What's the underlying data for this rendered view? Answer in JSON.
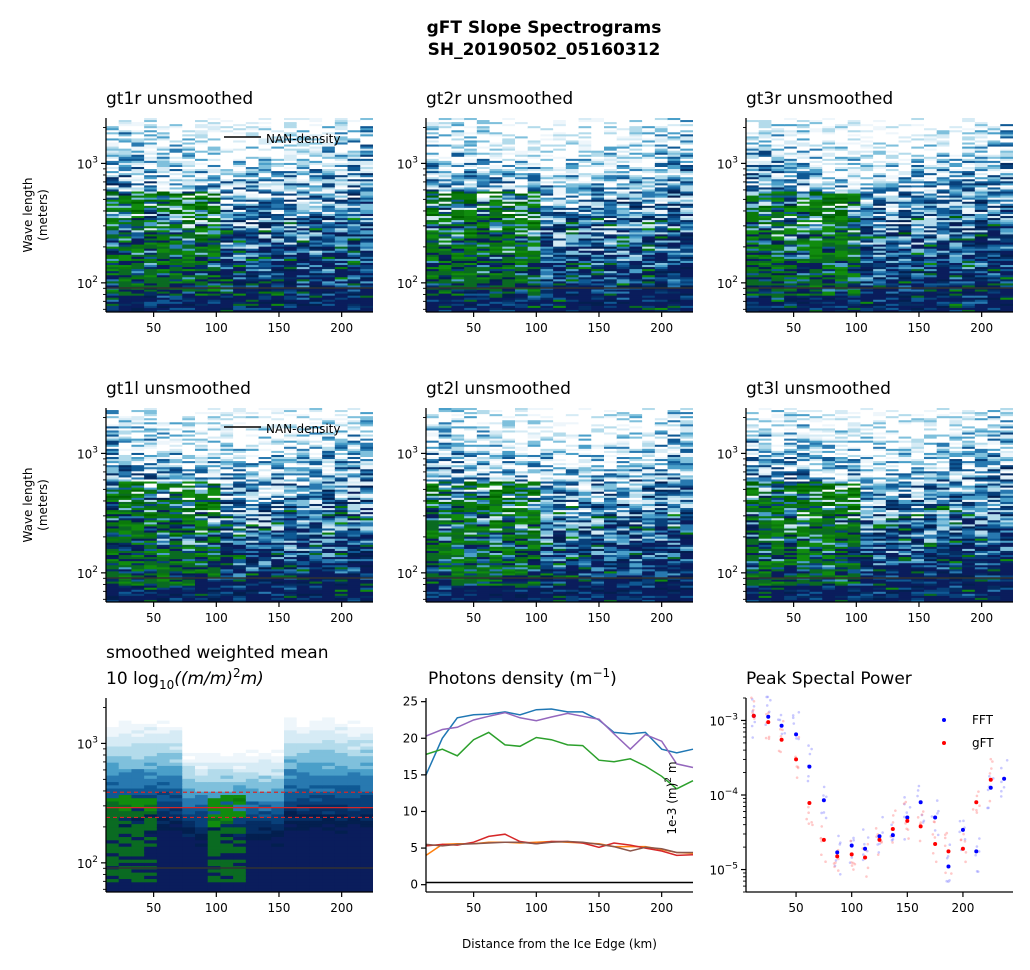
{
  "suptitle": {
    "line1": "gFT Slope Spectrograms",
    "line2": "SH_20190502_05160312"
  },
  "chart_data": [
    {
      "type": "heatmap",
      "id": "gt1r",
      "title": "gt1r unsmoothed",
      "ylabel_line1": "Wave length",
      "ylabel_line2": "(meters)",
      "legend_label": "NAN-density",
      "x_ticks": [
        "50",
        "100",
        "150",
        "200"
      ],
      "y_ticks": [
        "10",
        "10"
      ],
      "y_tick_exps": [
        "3",
        "2"
      ],
      "xlim": [
        12,
        225
      ],
      "ylim": [
        57,
        2400
      ],
      "yscale": "log",
      "seed": 11,
      "green_left": true
    },
    {
      "type": "heatmap",
      "id": "gt2r",
      "title": "gt2r unsmoothed",
      "x_ticks": [
        "50",
        "100",
        "150",
        "200"
      ],
      "y_ticks": [
        "10",
        "10"
      ],
      "y_tick_exps": [
        "3",
        "2"
      ],
      "xlim": [
        12,
        225
      ],
      "ylim": [
        57,
        2400
      ],
      "yscale": "log",
      "seed": 23,
      "green_left": true
    },
    {
      "type": "heatmap",
      "id": "gt3r",
      "title": "gt3r unsmoothed",
      "x_ticks": [
        "50",
        "100",
        "150",
        "200"
      ],
      "y_ticks": [
        "10",
        "10"
      ],
      "y_tick_exps": [
        "3",
        "2"
      ],
      "xlim": [
        12,
        225
      ],
      "ylim": [
        57,
        2400
      ],
      "yscale": "log",
      "seed": 37,
      "green_left": true
    },
    {
      "type": "heatmap",
      "id": "gt1l",
      "title": "gt1l unsmoothed",
      "ylabel_line1": "Wave length",
      "ylabel_line2": "(meters)",
      "legend_label": "NAN-density",
      "x_ticks": [
        "50",
        "100",
        "150",
        "200"
      ],
      "y_ticks": [
        "10",
        "10"
      ],
      "y_tick_exps": [
        "3",
        "2"
      ],
      "xlim": [
        12,
        225
      ],
      "ylim": [
        57,
        2400
      ],
      "yscale": "log",
      "seed": 41,
      "green_left": true
    },
    {
      "type": "heatmap",
      "id": "gt2l",
      "title": "gt2l unsmoothed",
      "x_ticks": [
        "50",
        "100",
        "150",
        "200"
      ],
      "y_ticks": [
        "10",
        "10"
      ],
      "y_tick_exps": [
        "3",
        "2"
      ],
      "xlim": [
        12,
        225
      ],
      "ylim": [
        57,
        2400
      ],
      "yscale": "log",
      "seed": 53,
      "green_left": true
    },
    {
      "type": "heatmap",
      "id": "gt3l",
      "title": "gt3l unsmoothed",
      "x_ticks": [
        "50",
        "100",
        "150",
        "200"
      ],
      "y_ticks": [
        "10",
        "10"
      ],
      "y_tick_exps": [
        "3",
        "2"
      ],
      "xlim": [
        12,
        225
      ],
      "ylim": [
        57,
        2400
      ],
      "yscale": "log",
      "seed": 67,
      "green_left": true
    },
    {
      "type": "heatmap",
      "id": "mean",
      "title_line1": "smoothed weighted mean",
      "title_line2_prefix": "10 log",
      "title_line2_sub": "10",
      "title_line2_main": "((m/m)",
      "title_line2_sup": "2",
      "title_line2_end": "m)",
      "x_ticks": [
        "50",
        "100",
        "150",
        "200"
      ],
      "y_ticks": [
        "10",
        "10"
      ],
      "y_tick_exps": [
        "3",
        "2"
      ],
      "xlim": [
        12,
        225
      ],
      "ylim": [
        57,
        2400
      ],
      "yscale": "log",
      "seed": 5,
      "smooth": true,
      "hlines": [
        390,
        290,
        240
      ]
    },
    {
      "type": "line",
      "id": "density",
      "title_main": "Photons density (m",
      "title_sup": "−1",
      "title_end": ")",
      "xlabel": "Distance from the Ice Edge (km)",
      "x_ticks": [
        "50",
        "100",
        "150",
        "200"
      ],
      "y_ticks": [
        "0",
        "5",
        "10",
        "15",
        "20",
        "25"
      ],
      "xlim": [
        12,
        225
      ],
      "ylim": [
        -1,
        25.5
      ],
      "x": [
        12,
        25,
        37,
        50,
        62,
        75,
        87,
        100,
        112,
        125,
        137,
        150,
        162,
        175,
        187,
        200,
        212,
        225
      ],
      "series": [
        {
          "color": "#1f77b4",
          "values": [
            15.0,
            20.0,
            22.8,
            23.2,
            23.3,
            23.6,
            23.2,
            23.9,
            24.0,
            23.6,
            23.6,
            22.5,
            20.8,
            20.6,
            20.8,
            18.5,
            18.0,
            18.5
          ]
        },
        {
          "color": "#9467bd",
          "values": [
            20.3,
            21.2,
            21.5,
            22.5,
            23.0,
            23.5,
            22.8,
            22.4,
            22.9,
            23.4,
            23.0,
            22.6,
            20.6,
            18.5,
            20.5,
            19.6,
            16.5,
            16.0
          ]
        },
        {
          "color": "#2ca02c",
          "values": [
            17.8,
            18.5,
            17.6,
            19.8,
            20.8,
            19.1,
            18.9,
            20.1,
            19.8,
            19.1,
            19.0,
            17.0,
            16.8,
            17.2,
            16.2,
            14.8,
            13.1,
            14.2
          ]
        },
        {
          "color": "#ff7f0e",
          "values": [
            4.0,
            5.5,
            5.6,
            5.6,
            5.8,
            5.8,
            5.7,
            5.8,
            5.9,
            5.8,
            5.7,
            5.6,
            5.2,
            5.2,
            5.2,
            4.8,
            4.4,
            4.3
          ]
        },
        {
          "color": "#d62728",
          "values": [
            5.3,
            5.5,
            5.4,
            5.8,
            6.6,
            6.9,
            5.9,
            5.6,
            5.9,
            5.9,
            5.7,
            5.1,
            5.7,
            5.4,
            5.0,
            4.6,
            4.0,
            4.1
          ]
        },
        {
          "color": "#8c564b",
          "values": [
            5.5,
            5.3,
            5.5,
            5.6,
            5.7,
            5.8,
            5.8,
            5.6,
            5.8,
            5.9,
            5.8,
            5.5,
            5.2,
            4.6,
            5.1,
            4.9,
            4.4,
            4.4
          ]
        },
        {
          "color": "#000000",
          "values": [
            0.3,
            0.3,
            0.3,
            0.3,
            0.3,
            0.3,
            0.3,
            0.3,
            0.3,
            0.3,
            0.3,
            0.3,
            0.3,
            0.3,
            0.3,
            0.3,
            0.3,
            0.3
          ]
        }
      ]
    },
    {
      "type": "scatter",
      "id": "peak",
      "title": "Peak Spectal Power",
      "ylabel_main": "1e-3 (m)",
      "ylabel_sup": "2",
      "ylabel_end": " m",
      "x_ticks": [
        "50",
        "100",
        "150",
        "200"
      ],
      "y_ticks": [
        "10",
        "10",
        "10"
      ],
      "y_tick_exps": [
        "−3",
        "−4",
        "−5"
      ],
      "xlim": [
        5,
        245
      ],
      "ylim": [
        5e-06,
        0.002
      ],
      "yscale": "log",
      "legend": [
        {
          "name": "FFT",
          "color": "#0000ff"
        },
        {
          "name": "gFT",
          "color": "#ff0000"
        }
      ],
      "fft_x": [
        12,
        25,
        37,
        50,
        62,
        75,
        87,
        100,
        112,
        125,
        137,
        150,
        162,
        175,
        187,
        200,
        212,
        225,
        237
      ],
      "fft_y": [
        0.00115,
        0.00112,
        0.00085,
        0.00065,
        0.00024,
        8.5e-05,
        1.7e-05,
        2.1e-05,
        1.9e-05,
        2.8e-05,
        2.9e-05,
        5e-05,
        8e-05,
        5e-05,
        1.1e-05,
        3.4e-05,
        1.75e-05,
        0.000125,
        0.000165
      ],
      "gft_x": [
        12,
        25,
        37,
        50,
        62,
        75,
        87,
        100,
        112,
        125,
        137,
        150,
        162,
        175,
        187,
        200,
        212,
        225
      ],
      "gft_y": [
        0.00115,
        0.00095,
        0.00055,
        0.0003,
        7.8e-05,
        2.5e-05,
        1.5e-05,
        1.6e-05,
        1.45e-05,
        2.5e-05,
        3.5e-05,
        4.5e-05,
        3.8e-05,
        2.2e-05,
        1.75e-05,
        1.9e-05,
        8e-05,
        0.00016
      ]
    }
  ]
}
